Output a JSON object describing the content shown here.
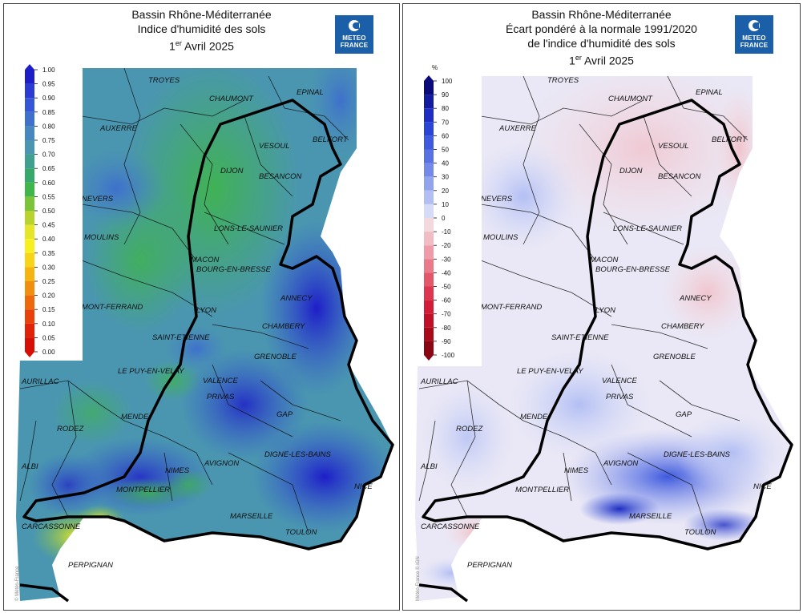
{
  "left_panel": {
    "title_line1": "Bassin Rhône-Méditerranée",
    "title_line2": "Indice d'humidité des sols",
    "date_day": "1",
    "date_sup": "er",
    "date_rest": " Avril 2025",
    "legend": {
      "ticks": [
        "1.00",
        "0.95",
        "0.90",
        "0.85",
        "0.80",
        "0.75",
        "0.70",
        "0.65",
        "0.60",
        "0.55",
        "0.50",
        "0.45",
        "0.40",
        "0.35",
        "0.30",
        "0.25",
        "0.20",
        "0.15",
        "0.10",
        "0.05",
        "0.00"
      ],
      "colors": [
        "#1e1ec8",
        "#2a3ad2",
        "#3556d6",
        "#3e70cc",
        "#4886bf",
        "#4a96b0",
        "#3fa08f",
        "#36a86a",
        "#3fb54a",
        "#7ac43a",
        "#b8d22e",
        "#e5e52a",
        "#f7f01e",
        "#f8d418",
        "#f6b412",
        "#f28e0e",
        "#ee680c",
        "#e8420a",
        "#e02208",
        "#d60e06"
      ]
    },
    "logo": {
      "line1": "METEO",
      "line2": "FRANCE"
    },
    "credit": "© Météo-France"
  },
  "right_panel": {
    "title_line1": "Bassin Rhône-Méditerranée",
    "title_line2": "Écart pondéré à la normale 1991/2020",
    "title_line3": "de l'indice d'humidité des sols",
    "date_day": "1",
    "date_sup": "er",
    "date_rest": " Avril 2025",
    "legend": {
      "unit": "%",
      "ticks": [
        "100",
        "90",
        "80",
        "70",
        "60",
        "50",
        "40",
        "30",
        "20",
        "10",
        "0",
        "-10",
        "-20",
        "-30",
        "-40",
        "-50",
        "-60",
        "-70",
        "-80",
        "-90",
        "-100"
      ],
      "colors": [
        "#0a0a7a",
        "#121aa0",
        "#1e2ec2",
        "#2a44d6",
        "#3f5ade",
        "#5872e4",
        "#7489ea",
        "#93a4ef",
        "#b3bff4",
        "#d6dcf8",
        "#f3d8dd",
        "#f2bcc4",
        "#ef9ca8",
        "#ea7a89",
        "#e4566a",
        "#de3650",
        "#d21c38",
        "#bf1028",
        "#a80a1c",
        "#8a0612"
      ]
    },
    "logo": {
      "line1": "METEO",
      "line2": "FRANCE"
    },
    "credit": "Météo-France © IGN"
  },
  "cities": [
    "TROYES",
    "CHAUMONT",
    "EPINAL",
    "AUXERRE",
    "VESOUL",
    "BELFORT",
    "DIJON",
    "BESANCON",
    "NEVERS",
    "LONS-LE-SAUNIER",
    "MOULINS",
    "MACON",
    "BOURG-EN-BRESSE",
    "ANNECY",
    "MONT-FERRAND",
    "LYON",
    "CHAMBERY",
    "SAINT-ETIENNE",
    "GRENOBLE",
    "AURILLAC",
    "LE PUY-EN-VELAY",
    "VALENCE",
    "PRIVAS",
    "MENDE",
    "GAP",
    "RODEZ",
    "DIGNE-LES-BAINS",
    "ALBI",
    "AVIGNON",
    "NIMES",
    "NICE",
    "MONTPELLIER",
    "MARSEILLE",
    "TOULON",
    "CARCASSONNE",
    "PERPIGNAN"
  ]
}
